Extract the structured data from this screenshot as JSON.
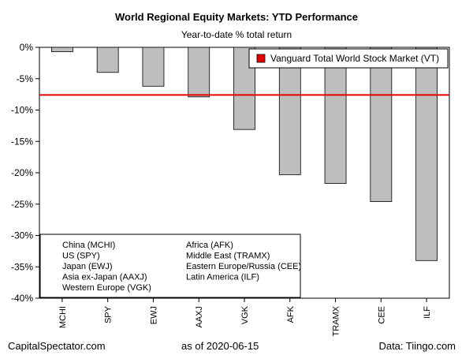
{
  "chart_data": {
    "type": "bar",
    "title": "World Regional Equity Markets: YTD Performance",
    "subtitle": "Year-to-date % total return",
    "categories": [
      "MCHI",
      "SPY",
      "EWJ",
      "AAXJ",
      "VGK",
      "AFK",
      "TRAMX",
      "CEE",
      "ILF"
    ],
    "values": [
      -0.7,
      -4.0,
      -6.2,
      -7.9,
      -13.1,
      -20.3,
      -21.7,
      -24.6,
      -34.0
    ],
    "ylim": [
      -40,
      0
    ],
    "yticks": [
      0,
      -5,
      -10,
      -15,
      -20,
      -25,
      -30,
      -35,
      -40
    ],
    "ytick_labels": [
      "0%",
      "-5%",
      "-10%",
      "-15%",
      "-20%",
      "-25%",
      "-30%",
      "-35%",
      "-40%"
    ],
    "bar_color": "#bebebe",
    "reference_line": {
      "label": "Vanguard Total World Stock Market (VT)",
      "value": -7.6,
      "color": "#e00000"
    },
    "legend_placement": "top-right",
    "key_left": [
      "China (MCHI)",
      "US (SPY)",
      "Japan (EWJ)",
      "Asia ex-Japan (AAXJ)",
      "Western Europe (VGK)"
    ],
    "key_right": [
      "Africa (AFK)",
      "Middle East (TRAMX)",
      "Eastern Europe/Russia (CEE)",
      "Latin America (ILF)"
    ],
    "key_placement": "bottom-left",
    "grid": false
  },
  "footer": {
    "left": "CapitalSpectator.com",
    "center": "as of   2020-06-15",
    "right": "Data: Tiingo.com"
  }
}
